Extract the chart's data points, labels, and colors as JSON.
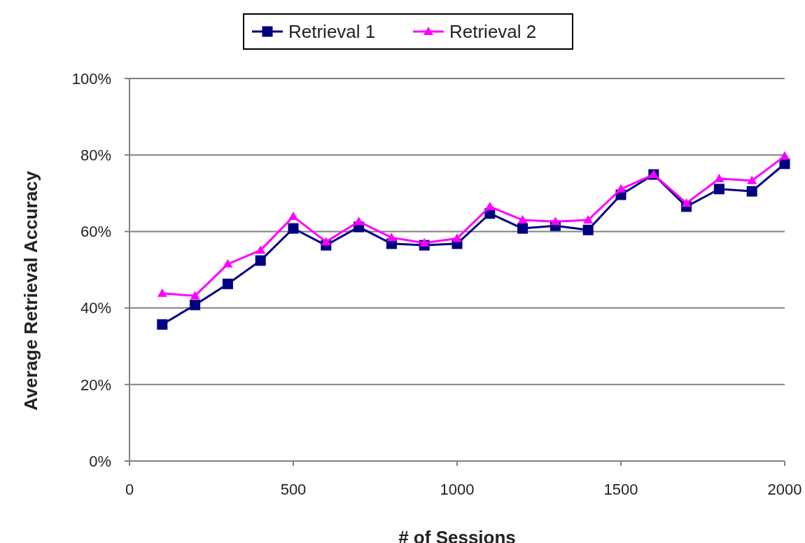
{
  "chart_data": {
    "type": "line",
    "xlabel": "# of Sessions",
    "ylabel": "Average Retrieval Accuracy",
    "x": [
      100,
      200,
      300,
      400,
      500,
      600,
      700,
      800,
      900,
      1000,
      1100,
      1200,
      1300,
      1400,
      1500,
      1600,
      1700,
      1800,
      1900,
      2000
    ],
    "series": [
      {
        "name": "Retrieval 1",
        "color": "#000080",
        "marker": "square",
        "values": [
          35.7,
          40.8,
          46.3,
          52.4,
          60.8,
          56.4,
          61.2,
          56.8,
          56.4,
          56.8,
          64.7,
          60.8,
          61.5,
          60.4,
          69.6,
          74.9,
          66.5,
          71.1,
          70.5,
          77.7
        ]
      },
      {
        "name": "Retrieval 2",
        "color": "#ff00ff",
        "marker": "triangle",
        "values": [
          43.8,
          43.2,
          51.5,
          55.1,
          63.9,
          57.3,
          62.6,
          58.4,
          57.0,
          58.2,
          66.5,
          63.0,
          62.6,
          63.0,
          71.1,
          74.9,
          67.4,
          73.8,
          73.3,
          79.7
        ]
      }
    ],
    "xlim": [
      0,
      2000
    ],
    "xticks": [
      0,
      500,
      1000,
      1500,
      2000
    ],
    "ylim": [
      0,
      100
    ],
    "yticks": [
      {
        "value": 0,
        "label": "0%"
      },
      {
        "value": 20,
        "label": "20%"
      },
      {
        "value": 40,
        "label": "40%"
      },
      {
        "value": 60,
        "label": "60%"
      },
      {
        "value": 80,
        "label": "80%"
      },
      {
        "value": 100,
        "label": "100%"
      }
    ],
    "grid": "y",
    "legend": "top"
  }
}
